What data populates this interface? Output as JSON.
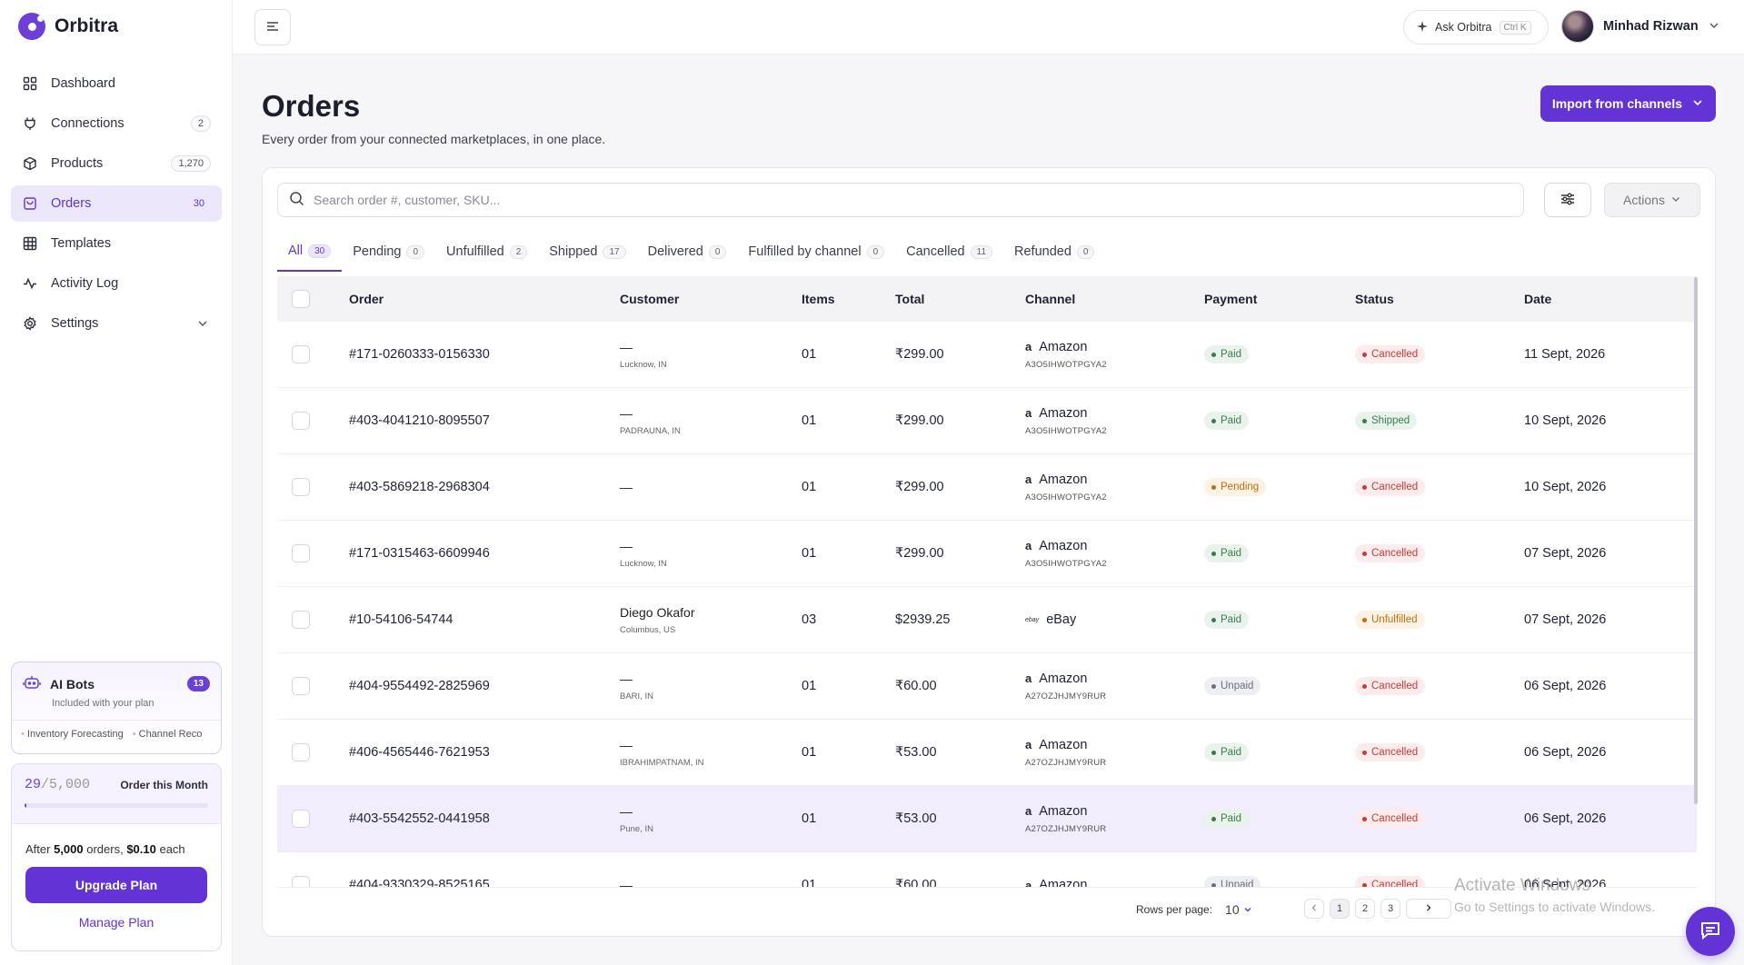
{
  "brand": {
    "name": "Orbitra"
  },
  "sidebar": {
    "items": [
      {
        "label": "Dashboard",
        "icon": "grid-icon",
        "badge": ""
      },
      {
        "label": "Connections",
        "icon": "plug-icon",
        "badge": "2"
      },
      {
        "label": "Products",
        "icon": "box-icon",
        "badge": "1,270"
      },
      {
        "label": "Orders",
        "icon": "bag-icon",
        "badge": "30",
        "active": true
      },
      {
        "label": "Templates",
        "icon": "table-icon",
        "badge": ""
      },
      {
        "label": "Activity Log",
        "icon": "activity-icon",
        "badge": ""
      },
      {
        "label": "Settings",
        "icon": "gear-icon",
        "badge": ""
      }
    ]
  },
  "bots": {
    "title": "AI Bots",
    "count": "13",
    "subtitle": "Included with your plan",
    "tags": [
      "Inventory Forecasting",
      "Channel Reco"
    ]
  },
  "usage": {
    "used": "29",
    "max": "/5,000",
    "label": "Order this Month",
    "progress_fraction": 0.0058,
    "note_prefix": "After ",
    "note_orders": "5,000",
    "note_mid": " orders, ",
    "note_price": "$0.10",
    "note_suffix": " each",
    "upgrade_label": "Upgrade Plan",
    "manage_label": "Manage Plan"
  },
  "topbar": {
    "ask_label": "Ask Orbitra",
    "ask_shortcut": "Ctrl K",
    "user_name": "Minhad Rizwan"
  },
  "header": {
    "title": "Orders",
    "subtitle": "Every order from your connected marketplaces, in one place.",
    "import_label": "Import from channels"
  },
  "toolbar": {
    "search_placeholder": "Search order #, customer, SKU...",
    "actions_label": "Actions"
  },
  "tabs": [
    {
      "label": "All",
      "count": "30",
      "active": true
    },
    {
      "label": "Pending",
      "count": "0"
    },
    {
      "label": "Unfulfilled",
      "count": "2"
    },
    {
      "label": "Shipped",
      "count": "17"
    },
    {
      "label": "Delivered",
      "count": "0"
    },
    {
      "label": "Fulfilled by channel",
      "count": "0"
    },
    {
      "label": "Cancelled",
      "count": "11"
    },
    {
      "label": "Refunded",
      "count": "0"
    }
  ],
  "table": {
    "columns": [
      "Order",
      "Customer",
      "Items",
      "Total",
      "Channel",
      "Payment",
      "Status",
      "Date"
    ],
    "rows": [
      {
        "order": "#171-0260333-0156330",
        "customer": "—",
        "location": "Lucknow, IN",
        "items": "01",
        "total": "₹299.00",
        "channel": "Amazon",
        "channel_id": "A3O5IHWOTPGYA2",
        "payment": "Paid",
        "status": "Cancelled",
        "date": "11 Sept, 2026"
      },
      {
        "order": "#403-4041210-8095507",
        "customer": "—",
        "location": "PADRAUNA, IN",
        "items": "01",
        "total": "₹299.00",
        "channel": "Amazon",
        "channel_id": "A3O5IHWOTPGYA2",
        "payment": "Paid",
        "status": "Shipped",
        "date": "10 Sept, 2026"
      },
      {
        "order": "#403-5869218-2968304",
        "customer": "—",
        "location": "",
        "items": "01",
        "total": "₹299.00",
        "channel": "Amazon",
        "channel_id": "A3O5IHWOTPGYA2",
        "payment": "Pending",
        "status": "Cancelled",
        "date": "10 Sept, 2026"
      },
      {
        "order": "#171-0315463-6609946",
        "customer": "—",
        "location": "Lucknow, IN",
        "items": "01",
        "total": "₹299.00",
        "channel": "Amazon",
        "channel_id": "A3O5IHWOTPGYA2",
        "payment": "Paid",
        "status": "Cancelled",
        "date": "07 Sept, 2026"
      },
      {
        "order": "#10-54106-54744",
        "customer": "Diego Okafor",
        "location": "Columbus, US",
        "items": "03",
        "total": "$2939.25",
        "channel": "eBay",
        "channel_id": "",
        "payment": "Paid",
        "status": "Unfulfilled",
        "date": "07 Sept, 2026"
      },
      {
        "order": "#404-9554492-2825969",
        "customer": "—",
        "location": "BARI, IN",
        "items": "01",
        "total": "₹60.00",
        "channel": "Amazon",
        "channel_id": "A27OZJHJMY9RUR",
        "payment": "Unpaid",
        "status": "Cancelled",
        "date": "06 Sept, 2026"
      },
      {
        "order": "#406-4565446-7621953",
        "customer": "—",
        "location": "IBRAHIMPATNAM, IN",
        "items": "01",
        "total": "₹53.00",
        "channel": "Amazon",
        "channel_id": "A27OZJHJMY9RUR",
        "payment": "Paid",
        "status": "Cancelled",
        "date": "06 Sept, 2026"
      },
      {
        "order": "#403-5542552-0441958",
        "customer": "—",
        "location": "Pune, IN",
        "items": "01",
        "total": "₹53.00",
        "channel": "Amazon",
        "channel_id": "A27OZJHJMY9RUR",
        "payment": "Paid",
        "status": "Cancelled",
        "date": "06 Sept, 2026",
        "highlight": true
      },
      {
        "order": "#404-9330329-8525165",
        "customer": "—",
        "location": "",
        "items": "01",
        "total": "₹60.00",
        "channel": "Amazon",
        "channel_id": "",
        "payment": "Unpaid",
        "status": "Cancelled",
        "date": "06 Sept, 2026"
      }
    ]
  },
  "pagination": {
    "rows_label": "Rows per page:",
    "rows_value": "10",
    "pages": [
      "1",
      "2",
      "3"
    ]
  },
  "watermark": {
    "line1": "Activate Windows",
    "line2": "Go to Settings to activate Windows."
  },
  "colors": {
    "accent": "#6433d6",
    "paid": "#3c7a4d",
    "cancelled": "#c53a3a",
    "pending": "#c06d12"
  }
}
